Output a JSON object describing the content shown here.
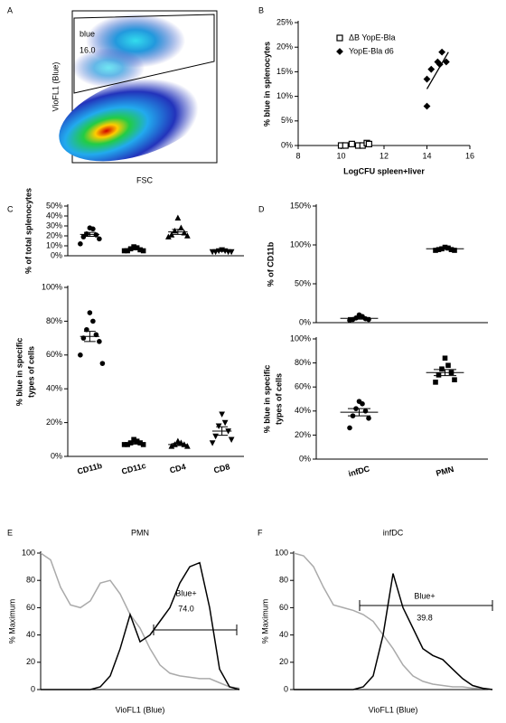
{
  "chart_data": [
    {
      "type": "density",
      "panel": "A",
      "xlabel": "FSC",
      "ylabel": "VioFL1 (Blue)",
      "annotations": [
        "blue",
        "16.0"
      ]
    },
    {
      "type": "scatter",
      "panel": "B",
      "xlabel": "LogCFU spleen+liver",
      "ylabel": "% blue in splenocytes",
      "xlim": [
        8,
        16
      ],
      "xticks": [
        8,
        10,
        12,
        14,
        16
      ],
      "ylim": [
        0,
        25
      ],
      "yticks": [
        {
          "value": 0,
          "label": "0%"
        },
        {
          "value": 5,
          "label": "5%"
        },
        {
          "value": 10,
          "label": "10%"
        },
        {
          "value": 15,
          "label": "15%"
        },
        {
          "value": 20,
          "label": "20%"
        },
        {
          "value": 25,
          "label": "25%"
        }
      ],
      "series": [
        {
          "name": "ΔB YopE-Bla",
          "marker": "square-open",
          "color": "#000000",
          "x": [
            10,
            10.2,
            10.5,
            10.8,
            11,
            11.2,
            11.3
          ],
          "values": [
            0,
            0,
            0.3,
            0,
            0,
            0.5,
            0.3
          ]
        },
        {
          "name": "YopE-Bla d6",
          "marker": "diamond",
          "color": "#000000",
          "x": [
            14,
            14,
            14.2,
            14.5,
            14.6,
            14.7,
            14.9
          ],
          "values": [
            8,
            13.5,
            15.5,
            17,
            16.5,
            19,
            17
          ]
        }
      ],
      "fit": {
        "x": [
          14,
          15
        ],
        "y": [
          11.5,
          19
        ]
      }
    },
    {
      "type": "dot",
      "panel": "C",
      "ylabel": "% of total splenocytes",
      "ylim": [
        0,
        50
      ],
      "yticks": [
        {
          "value": 0,
          "label": "0%"
        },
        {
          "value": 10,
          "label": "10%"
        },
        {
          "value": 20,
          "label": "20%"
        },
        {
          "value": 30,
          "label": "30%"
        },
        {
          "value": 40,
          "label": "40%"
        },
        {
          "value": 50,
          "label": "50%"
        }
      ],
      "markers": [
        "circle",
        "square",
        "triangle",
        "triangle-down"
      ],
      "points": [
        [
          28,
          27,
          22,
          21,
          19,
          17,
          12
        ],
        [
          9,
          8,
          7,
          6,
          5,
          5,
          5
        ],
        [
          38,
          28,
          25,
          23,
          21,
          20,
          19
        ],
        [
          6,
          5,
          5,
          4,
          4,
          4,
          4
        ]
      ],
      "mean": [
        21.5,
        7,
        24,
        4.8
      ],
      "sem": [
        2,
        1,
        2.5,
        0.4
      ]
    },
    {
      "type": "dot",
      "ylabel": [
        "% blue  in specific",
        "types of cells"
      ],
      "categories": [
        "CD11b",
        "CD11c",
        "CD4",
        "CD8"
      ],
      "ylim": [
        0,
        100
      ],
      "yticks": [
        {
          "value": 0,
          "label": "0%"
        },
        {
          "value": 20,
          "label": "20%"
        },
        {
          "value": 40,
          "label": "40%"
        },
        {
          "value": 60,
          "label": "60%"
        },
        {
          "value": 80,
          "label": "80%"
        },
        {
          "value": 100,
          "label": "100%"
        }
      ],
      "markers": [
        "circle",
        "square",
        "triangle",
        "triangle-down"
      ],
      "points": [
        [
          85,
          80,
          75,
          72,
          70,
          68,
          60,
          55
        ],
        [
          10,
          9,
          8,
          8,
          7,
          7,
          7
        ],
        [
          9,
          8,
          7,
          7,
          6,
          6
        ],
        [
          25,
          20,
          18,
          15,
          12,
          10,
          8
        ]
      ],
      "mean": [
        71,
        8,
        7,
        15
      ],
      "sem": [
        3,
        0.7,
        0.6,
        2.5
      ]
    },
    {
      "type": "dot",
      "panel": "D",
      "ylabel": "% of CD11b",
      "ylim": [
        0,
        150
      ],
      "yticks": [
        {
          "value": 0,
          "label": "0%"
        },
        {
          "value": 50,
          "label": "50%"
        },
        {
          "value": 100,
          "label": "100%"
        },
        {
          "value": 150,
          "label": "150%"
        }
      ],
      "markers": [
        "circle",
        "square"
      ],
      "points": [
        [
          10,
          8,
          6,
          5,
          4,
          4,
          3
        ],
        [
          97,
          96,
          95,
          94,
          94,
          93,
          93
        ]
      ],
      "mean": [
        5.5,
        95
      ],
      "sem": [
        1,
        0.5
      ]
    },
    {
      "type": "dot",
      "ylabel": [
        "% blue in specific",
        "types of cells"
      ],
      "categories": [
        "infDC",
        "PMN"
      ],
      "ylim": [
        0,
        100
      ],
      "yticks": [
        {
          "value": 0,
          "label": "0%"
        },
        {
          "value": 20,
          "label": "20%"
        },
        {
          "value": 40,
          "label": "40%"
        },
        {
          "value": 60,
          "label": "60%"
        },
        {
          "value": 80,
          "label": "80%"
        },
        {
          "value": 100,
          "label": "100%"
        }
      ],
      "markers": [
        "circle",
        "square"
      ],
      "points": [
        [
          48,
          46,
          42,
          40,
          36,
          34,
          26
        ],
        [
          84,
          78,
          75,
          72,
          70,
          66,
          64
        ]
      ],
      "mean": [
        39,
        72
      ],
      "sem": [
        3,
        2.5
      ]
    },
    {
      "type": "line",
      "panel": "E",
      "title": "PMN",
      "xlabel": "VioFL1 (Blue)",
      "ylabel": "% Maximum",
      "annotations": [
        "Blue+",
        "74.0"
      ],
      "ylim": [
        0,
        100
      ],
      "yticks": [
        0,
        20,
        40,
        60,
        80,
        100
      ],
      "categories": [
        null,
        null,
        null,
        null,
        null,
        null,
        null,
        null,
        null,
        null,
        null,
        null,
        null,
        null,
        null,
        null,
        null,
        null,
        null,
        null,
        null
      ],
      "series": [
        {
          "color": "#aaaaaa",
          "values": [
            100,
            95,
            75,
            62,
            60,
            65,
            78,
            80,
            70,
            55,
            45,
            30,
            18,
            12,
            10,
            9,
            8,
            8,
            5,
            2,
            1
          ]
        },
        {
          "color": "#000000",
          "values": [
            0,
            0,
            0,
            0,
            0,
            0,
            2,
            10,
            30,
            55,
            35,
            40,
            50,
            60,
            78,
            90,
            93,
            60,
            15,
            2,
            0
          ]
        }
      ]
    },
    {
      "type": "line",
      "panel": "F",
      "title": "infDC",
      "xlabel": "VioFL1 (Blue)",
      "ylabel": "% Maximum",
      "annotations": [
        "Blue+",
        "39.8"
      ],
      "ylim": [
        0,
        100
      ],
      "yticks": [
        0,
        20,
        40,
        60,
        80,
        100
      ],
      "categories": [
        null,
        null,
        null,
        null,
        null,
        null,
        null,
        null,
        null,
        null,
        null,
        null,
        null,
        null,
        null,
        null,
        null,
        null,
        null,
        null,
        null
      ],
      "series": [
        {
          "color": "#aaaaaa",
          "values": [
            100,
            98,
            90,
            75,
            62,
            60,
            58,
            55,
            50,
            40,
            30,
            18,
            10,
            6,
            4,
            3,
            2,
            2,
            1,
            1,
            0
          ]
        },
        {
          "color": "#000000",
          "values": [
            0,
            0,
            0,
            0,
            0,
            0,
            0,
            2,
            10,
            40,
            85,
            60,
            45,
            30,
            25,
            22,
            15,
            8,
            3,
            1,
            0
          ]
        }
      ]
    }
  ]
}
